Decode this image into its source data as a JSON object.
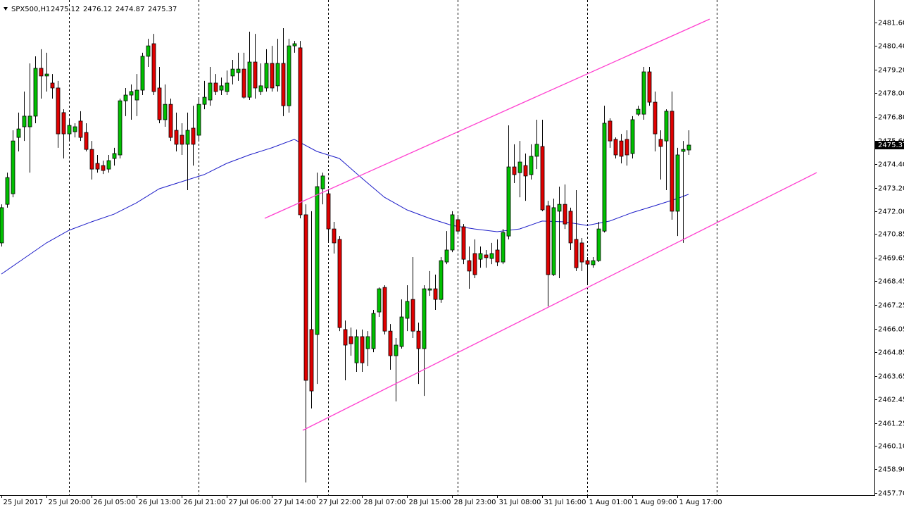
{
  "chart_data": {
    "type": "candlestick",
    "symbol": "SPX500,H1",
    "up_color": "#00c000",
    "down_color": "#e00000",
    "ylim": [
      2457.59,
      2482.74
    ],
    "yticks": [
      {
        "value": 2481.6,
        "label": "2481.60"
      },
      {
        "value": 2480.4,
        "label": "2480.40"
      },
      {
        "value": 2479.2,
        "label": "2479.20"
      },
      {
        "value": 2478.0,
        "label": "2478.00"
      },
      {
        "value": 2476.8,
        "label": "2476.80"
      },
      {
        "value": 2475.6,
        "label": "2475.60"
      },
      {
        "value": 2474.4,
        "label": "2474.40"
      },
      {
        "value": 2473.2,
        "label": "2473.20"
      },
      {
        "value": 2472.0,
        "label": "2472.00"
      },
      2470.85,
      2469.65,
      2468.45,
      2467.25,
      2466.05,
      2464.85,
      2463.65,
      2462.45,
      2461.25,
      {
        "value": 2460.1,
        "label": "2460.10"
      },
      {
        "value": 2458.9,
        "label": "2458.90"
      },
      {
        "value": 2457.7,
        "label": "2457.70"
      }
    ],
    "xlim": [
      -0.25,
      155
    ],
    "xticks": [
      {
        "value": 0,
        "label": "25 Jul 2017"
      },
      {
        "value": 8,
        "label": "25 Jul 20:00"
      },
      {
        "value": 16,
        "label": "26 Jul 05:00"
      },
      {
        "value": 24,
        "label": "26 Jul 13:00"
      },
      {
        "value": 32,
        "label": "26 Jul 21:00"
      },
      {
        "value": 40,
        "label": "27 Jul 06:00"
      },
      {
        "value": 48,
        "label": "27 Jul 14:00"
      },
      {
        "value": 56,
        "label": "27 Jul 22:00"
      },
      {
        "value": 64,
        "label": "28 Jul 07:00"
      },
      {
        "value": 72,
        "label": "28 Jul 15:00"
      },
      {
        "value": 80,
        "label": "28 Jul 23:00"
      },
      {
        "value": 88,
        "label": "31 Jul 08:00"
      },
      {
        "value": 96,
        "label": "31 Jul 16:00"
      },
      {
        "value": 104,
        "label": "1 Aug 01:00"
      },
      {
        "value": 112,
        "label": "1 Aug 09:00"
      },
      {
        "value": 120,
        "label": "1 Aug 17:00"
      }
    ],
    "vgrid": [
      12,
      35,
      58,
      81,
      104,
      127
    ],
    "ohlc": [
      [
        2470.4,
        2472.36,
        2470.22,
        2472.19
      ],
      [
        2472.36,
        2473.97,
        2472.19,
        2473.72
      ],
      [
        2472.9,
        2476.12,
        2472.72,
        2475.58
      ],
      [
        2475.76,
        2477.02,
        2475.05,
        2476.19
      ],
      [
        2476.3,
        2478.09,
        2475.58,
        2476.84
      ],
      [
        2476.3,
        2479.52,
        2473.97,
        2476.84
      ],
      [
        2476.84,
        2479.88,
        2476.48,
        2479.27
      ],
      [
        2479.27,
        2480.24,
        2477.73,
        2478.88
      ],
      [
        2478.88,
        2480.06,
        2478.09,
        2478.98
      ],
      [
        2478.52,
        2478.98,
        2477.73,
        2478.27
      ],
      [
        2478.27,
        2478.63,
        2475.23,
        2475.94
      ],
      [
        2477.02,
        2477.19,
        2474.69,
        2475.94
      ],
      [
        2475.94,
        2476.66,
        2475.58,
        2476.37
      ],
      [
        2476.05,
        2476.48,
        2475.76,
        2476.3
      ],
      [
        2476.59,
        2477.09,
        2475.58,
        2475.76
      ],
      [
        2476.01,
        2476.48,
        2475.05,
        2475.15
      ],
      [
        2475.15,
        2475.58,
        2473.62,
        2474.15
      ],
      [
        2474.44,
        2474.87,
        2473.97,
        2474.15
      ],
      [
        2474.33,
        2474.58,
        2473.9,
        2474.08
      ],
      [
        2474.15,
        2474.87,
        2473.97,
        2474.58
      ],
      [
        2474.69,
        2475.23,
        2474.33,
        2474.94
      ],
      [
        2474.87,
        2477.73,
        2474.69,
        2477.62
      ],
      [
        2477.62,
        2478.27,
        2476.84,
        2477.91
      ],
      [
        2477.91,
        2478.45,
        2476.66,
        2478.09
      ],
      [
        2477.66,
        2478.98,
        2476.84,
        2478.16
      ],
      [
        2478.16,
        2480.06,
        2477.91,
        2479.88
      ],
      [
        2479.88,
        2480.77,
        2479.34,
        2480.41
      ],
      [
        2480.52,
        2481.02,
        2477.91,
        2478.09
      ],
      [
        2478.27,
        2479.34,
        2476.48,
        2476.66
      ],
      [
        2476.66,
        2478.45,
        2476.3,
        2477.44
      ],
      [
        2477.44,
        2477.73,
        2475.58,
        2475.76
      ],
      [
        2476.12,
        2477.02,
        2475.05,
        2475.41
      ],
      [
        2475.87,
        2476.48,
        2474.87,
        2475.41
      ],
      [
        2475.41,
        2477.02,
        2473.08,
        2476.12
      ],
      [
        2476.23,
        2477.37,
        2474.33,
        2475.41
      ],
      [
        2475.87,
        2477.73,
        2475.58,
        2477.44
      ],
      [
        2477.44,
        2478.63,
        2477.19,
        2477.8
      ],
      [
        2477.66,
        2479.34,
        2477.37,
        2478.52
      ],
      [
        2478.52,
        2478.98,
        2477.91,
        2478.09
      ],
      [
        2478.16,
        2478.8,
        2477.91,
        2478.38
      ],
      [
        2478.09,
        2479.16,
        2477.91,
        2478.52
      ],
      [
        2478.88,
        2479.7,
        2478.45,
        2479.23
      ],
      [
        2479.05,
        2480.06,
        2478.63,
        2479.23
      ],
      [
        2479.23,
        2480.06,
        2477.73,
        2477.8
      ],
      [
        2477.8,
        2481.13,
        2477.66,
        2479.59
      ],
      [
        2479.59,
        2481.02,
        2477.73,
        2478.27
      ],
      [
        2478.09,
        2479.52,
        2477.91,
        2478.38
      ],
      [
        2478.27,
        2480.24,
        2478.09,
        2479.52
      ],
      [
        2479.52,
        2480.41,
        2478.09,
        2478.27
      ],
      [
        2478.38,
        2480.77,
        2478.09,
        2479.52
      ],
      [
        2479.52,
        2481.31,
        2476.84,
        2477.37
      ],
      [
        2477.37,
        2480.77,
        2477.02,
        2480.41
      ],
      [
        2480.41,
        2480.66,
        2480.06,
        2480.52
      ],
      [
        2480.31,
        2480.66,
        2471.65,
        2471.83
      ],
      [
        2471.83,
        2472.36,
        2458.23,
        2463.42
      ],
      [
        2466.0,
        2472.01,
        2461.99,
        2462.88
      ],
      [
        2465.75,
        2473.97,
        2463.24,
        2473.26
      ],
      [
        2473.15,
        2473.97,
        2472.36,
        2473.8
      ],
      [
        2472.9,
        2473.15,
        2470.4,
        2471.11
      ],
      [
        2471.11,
        2471.47,
        2469.86,
        2470.4
      ],
      [
        2470.58,
        2470.75,
        2465.92,
        2466.1
      ],
      [
        2466.0,
        2466.46,
        2463.42,
        2465.21
      ],
      [
        2465.64,
        2466.1,
        2464.67,
        2465.28
      ],
      [
        2464.31,
        2466.0,
        2463.85,
        2465.64
      ],
      [
        2465.64,
        2466.0,
        2463.85,
        2464.31
      ],
      [
        2465.03,
        2465.92,
        2464.14,
        2465.64
      ],
      [
        2465.03,
        2467.0,
        2464.85,
        2466.82
      ],
      [
        2466.89,
        2468.14,
        2466.64,
        2468.07
      ],
      [
        2468.14,
        2468.25,
        2465.75,
        2465.92
      ],
      [
        2465.92,
        2466.28,
        2463.96,
        2464.67
      ],
      [
        2464.67,
        2465.57,
        2462.35,
        2465.21
      ],
      [
        2465.14,
        2467.53,
        2465.03,
        2466.64
      ],
      [
        2466.57,
        2468.25,
        2465.92,
        2467.43
      ],
      [
        2467.53,
        2469.68,
        2465.57,
        2465.92
      ],
      [
        2465.92,
        2466.35,
        2463.24,
        2465.03
      ],
      [
        2465.03,
        2468.25,
        2462.63,
        2468.07
      ],
      [
        2468.0,
        2468.97,
        2467.71,
        2468.07
      ],
      [
        2468.07,
        2468.79,
        2467.0,
        2467.53
      ],
      [
        2467.53,
        2469.68,
        2467.36,
        2469.5
      ],
      [
        2469.43,
        2471.0,
        2469.32,
        2470.04
      ],
      [
        2470.04,
        2472.01,
        2469.93,
        2471.83
      ],
      [
        2471.58,
        2471.83,
        2470.86,
        2471.0
      ],
      [
        2471.22,
        2471.36,
        2469.32,
        2469.57
      ],
      [
        2469.5,
        2470.22,
        2468.07,
        2468.97
      ],
      [
        2469.86,
        2470.58,
        2468.61,
        2468.79
      ],
      [
        2469.57,
        2470.22,
        2469.14,
        2469.86
      ],
      [
        2469.79,
        2470.04,
        2469.14,
        2469.65
      ],
      [
        2469.61,
        2470.4,
        2469.32,
        2469.86
      ],
      [
        2470.04,
        2470.58,
        2469.22,
        2469.43
      ],
      [
        2469.43,
        2471.11,
        2469.32,
        2470.93
      ],
      [
        2470.75,
        2476.37,
        2470.58,
        2474.26
      ],
      [
        2474.26,
        2475.41,
        2473.44,
        2473.87
      ],
      [
        2473.97,
        2475.58,
        2472.72,
        2474.51
      ],
      [
        2474.33,
        2474.94,
        2472.54,
        2473.8
      ],
      [
        2473.87,
        2475.41,
        2473.62,
        2474.8
      ],
      [
        2474.8,
        2476.66,
        2474.15,
        2475.41
      ],
      [
        2475.3,
        2476.66,
        2472.01,
        2472.08
      ],
      [
        2472.29,
        2472.54,
        2467.18,
        2468.79
      ],
      [
        2468.79,
        2472.65,
        2468.72,
        2472.19
      ],
      [
        2472.01,
        2473.26,
        2468.61,
        2472.36
      ],
      [
        2472.36,
        2473.37,
        2471.11,
        2471.36
      ],
      [
        2472.01,
        2472.19,
        2470.04,
        2470.4
      ],
      [
        2470.58,
        2473.08,
        2468.97,
        2469.14
      ],
      [
        2470.4,
        2470.65,
        2468.97,
        2469.43
      ],
      [
        2469.5,
        2469.68,
        2468.25,
        2469.32
      ],
      [
        2469.29,
        2469.68,
        2469.14,
        2469.5
      ],
      [
        2469.5,
        2471.47,
        2469.43,
        2471.11
      ],
      [
        2471.0,
        2477.37,
        2470.93,
        2476.48
      ],
      [
        2476.59,
        2476.73,
        2475.23,
        2475.58
      ],
      [
        2475.66,
        2475.76,
        2474.69,
        2474.87
      ],
      [
        2475.58,
        2475.94,
        2474.44,
        2474.8
      ],
      [
        2475.66,
        2476.12,
        2474.33,
        2474.87
      ],
      [
        2474.94,
        2476.84,
        2474.69,
        2476.66
      ],
      [
        2476.94,
        2477.37,
        2476.84,
        2477.19
      ],
      [
        2476.94,
        2479.34,
        2476.66,
        2479.09
      ],
      [
        2479.09,
        2479.34,
        2477.37,
        2477.55
      ],
      [
        2477.55,
        2478.09,
        2475.05,
        2475.94
      ],
      [
        2475.66,
        2476.12,
        2473.62,
        2475.3
      ],
      [
        2475.58,
        2477.19,
        2473.08,
        2477.09
      ],
      [
        2477.09,
        2478.09,
        2471.58,
        2472.01
      ],
      [
        2472.01,
        2475.23,
        2470.75,
        2474.87
      ],
      [
        2475.05,
        2475.58,
        2470.4,
        2475.15
      ],
      [
        2475.12,
        2476.12,
        2474.87,
        2475.37
      ]
    ],
    "ma": {
      "color": "#1c1cc8",
      "x": [
        0,
        4,
        8,
        12,
        16,
        20,
        24,
        28,
        32,
        36,
        40,
        44,
        48,
        52,
        56,
        60,
        64,
        68,
        72,
        76,
        80,
        84,
        88,
        92,
        96,
        100,
        104,
        108,
        112,
        116,
        120,
        122
      ],
      "values": [
        2468.82,
        2469.61,
        2470.4,
        2471.04,
        2471.47,
        2471.86,
        2472.44,
        2473.15,
        2473.51,
        2473.87,
        2474.44,
        2474.87,
        2475.23,
        2475.66,
        2475.05,
        2474.69,
        2473.69,
        2472.72,
        2472.08,
        2471.65,
        2471.29,
        2471.11,
        2470.97,
        2471.11,
        2471.51,
        2471.47,
        2471.29,
        2471.51,
        2471.94,
        2472.29,
        2472.65,
        2472.87
      ]
    },
    "trendlines": {
      "color": "#ff40d0",
      "lines": [
        {
          "x": [
            46.75,
            125.75
          ],
          "values": [
            2471.65,
            2481.77
          ]
        },
        {
          "x": [
            53.5,
            144.75
          ],
          "values": [
            2460.88,
            2473.97
          ]
        }
      ]
    }
  }
}
